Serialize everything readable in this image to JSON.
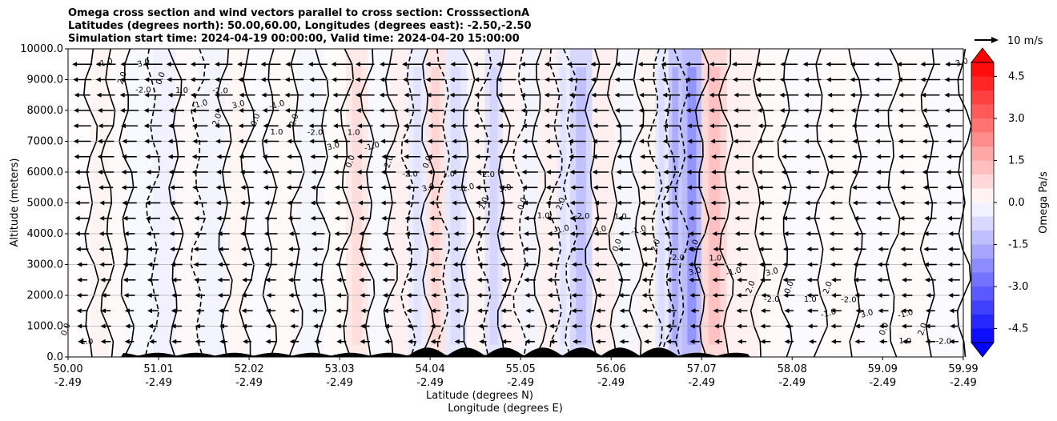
{
  "chart_data": {
    "type": "heatmap",
    "title_lines": [
      "Omega cross section and wind vectors parallel to cross section: CrosssectionA",
      "Latitudes (degrees north): 50.00,60.00, Longitudes (degrees east): -2.50,-2.50",
      "Simulation start time: 2024-04-19 00:00:00, Valid time: 2024-04-20 15:00:00"
    ],
    "ylabel": "Altitude (meters)",
    "xlabel_line1": "Latitude (degrees N)",
    "xlabel_line2": "Longitude (degrees E)",
    "ylim": [
      0,
      10000
    ],
    "yticks": [
      "0.0",
      "1000.0",
      "2000.0",
      "3000.0",
      "4000.0",
      "5000.0",
      "6000.0",
      "7000.0",
      "8000.0",
      "9000.0",
      "10000.0"
    ],
    "xlim": [
      50.0,
      59.99
    ],
    "xticks": [
      {
        "lat": "50.00",
        "lon": "-2.49"
      },
      {
        "lat": "51.01",
        "lon": "-2.49"
      },
      {
        "lat": "52.02",
        "lon": "-2.49"
      },
      {
        "lat": "53.03",
        "lon": "-2.49"
      },
      {
        "lat": "54.04",
        "lon": "-2.49"
      },
      {
        "lat": "55.05",
        "lon": "-2.49"
      },
      {
        "lat": "56.06",
        "lon": "-2.49"
      },
      {
        "lat": "57.07",
        "lon": "-2.49"
      },
      {
        "lat": "58.08",
        "lon": "-2.49"
      },
      {
        "lat": "59.09",
        "lon": "-2.49"
      },
      {
        "lat": "59.99",
        "lon": "-2.49"
      }
    ],
    "grid": true,
    "colorbar": {
      "label": "Omega Pa/s",
      "range": [
        -5.0,
        5.0
      ],
      "ticks": [
        "-4.5",
        "-3.0",
        "-1.5",
        "0.0",
        "1.5",
        "3.0",
        "4.5"
      ],
      "extend": "both",
      "colormap": "bwr"
    },
    "quiver_key": {
      "label": "10 m/s"
    },
    "contour_labels": [
      "0.0",
      "1.0",
      "-1.0",
      "2.0",
      "-2.0",
      "3.0"
    ],
    "columns": [
      {
        "lat": 50.0,
        "omega": 0.1
      },
      {
        "lat": 50.25,
        "omega": 0.6
      },
      {
        "lat": 50.45,
        "omega": 0.3
      },
      {
        "lat": 50.65,
        "omega": -0.4
      },
      {
        "lat": 50.95,
        "omega": -0.8
      },
      {
        "lat": 51.2,
        "omega": 0.4
      },
      {
        "lat": 51.45,
        "omega": -0.6
      },
      {
        "lat": 51.75,
        "omega": 0.5
      },
      {
        "lat": 52.0,
        "omega": -0.3
      },
      {
        "lat": 52.25,
        "omega": 0.3
      },
      {
        "lat": 52.55,
        "omega": -0.5
      },
      {
        "lat": 52.85,
        "omega": 0.2
      },
      {
        "lat": 53.1,
        "omega": 1.2
      },
      {
        "lat": 53.35,
        "omega": -0.4
      },
      {
        "lat": 53.6,
        "omega": 0.8
      },
      {
        "lat": 53.8,
        "omega": -1.0
      },
      {
        "lat": 54.0,
        "omega": 1.5
      },
      {
        "lat": 54.2,
        "omega": -1.2
      },
      {
        "lat": 54.45,
        "omega": 0.6
      },
      {
        "lat": 54.65,
        "omega": -1.5
      },
      {
        "lat": 54.85,
        "omega": 0.7
      },
      {
        "lat": 55.05,
        "omega": -0.6
      },
      {
        "lat": 55.25,
        "omega": 0.8
      },
      {
        "lat": 55.45,
        "omega": -1.0
      },
      {
        "lat": 55.6,
        "omega": -2.2
      },
      {
        "lat": 55.85,
        "omega": 0.9
      },
      {
        "lat": 56.1,
        "omega": -0.5
      },
      {
        "lat": 56.35,
        "omega": 0.6
      },
      {
        "lat": 56.55,
        "omega": -1.2
      },
      {
        "lat": 56.7,
        "omega": -3.0
      },
      {
        "lat": 56.85,
        "omega": -3.8
      },
      {
        "lat": 57.07,
        "omega": 2.2
      },
      {
        "lat": 57.35,
        "omega": 0.8
      },
      {
        "lat": 57.7,
        "omega": 0.3
      },
      {
        "lat": 58.0,
        "omega": -0.3
      },
      {
        "lat": 58.4,
        "omega": 0.2
      },
      {
        "lat": 58.8,
        "omega": -0.2
      },
      {
        "lat": 59.2,
        "omega": 0.2
      },
      {
        "lat": 59.6,
        "omega": -0.2
      },
      {
        "lat": 59.99,
        "omega": 0.1
      }
    ],
    "wind_vector_rows": [
      500,
      1000,
      1500,
      2000,
      2500,
      3000,
      3500,
      4000,
      4500,
      5000,
      5500,
      6000,
      6500,
      7000,
      7500,
      8000,
      8500,
      9000,
      9500
    ],
    "wind_vector_direction": "northward-negative (pointing toward decreasing latitude)"
  }
}
